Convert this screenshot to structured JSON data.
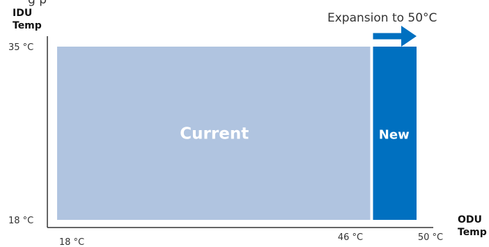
{
  "chart_data": {
    "type": "area",
    "title": "",
    "xlabel": [
      "ODU",
      "Temp"
    ],
    "ylabel": [
      "IDU",
      "Temp"
    ],
    "x_unit": "°C",
    "y_unit": "°C",
    "xlim": [
      18,
      50
    ],
    "ylim": [
      18,
      35
    ],
    "x_ticks": [
      {
        "value": 18,
        "label": "18 °C"
      },
      {
        "value": 46,
        "label": "46 °C"
      },
      {
        "value": 50,
        "label": "50 °C"
      }
    ],
    "y_ticks": [
      {
        "value": 35,
        "label": "35 °C"
      },
      {
        "value": 18,
        "label": "18 °C"
      }
    ],
    "regions": [
      {
        "name": "Current",
        "x_range": [
          18,
          46
        ],
        "y_range": [
          18,
          35
        ],
        "color": "#b0c4e0"
      },
      {
        "name": "New",
        "x_range": [
          46,
          50
        ],
        "y_range": [
          18,
          35
        ],
        "color": "#0070c0"
      }
    ],
    "annotation": {
      "text": "Expansion to 50°C",
      "arrow_from": 46,
      "arrow_to": 50,
      "color": "#0070c0"
    },
    "grid": false,
    "legend": "none"
  }
}
